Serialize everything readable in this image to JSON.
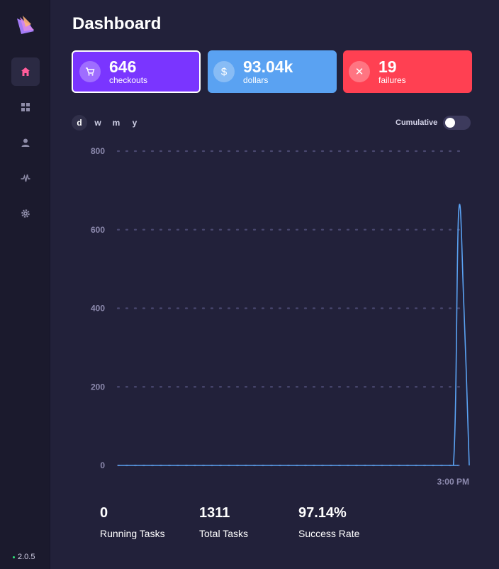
{
  "app": {
    "title": "Dashboard",
    "version": "2.0.5"
  },
  "sidebar": {
    "items": [
      {
        "icon": "home-icon",
        "active": true
      },
      {
        "icon": "grid-icon",
        "active": false
      },
      {
        "icon": "user-icon",
        "active": false
      },
      {
        "icon": "activity-icon",
        "active": false
      },
      {
        "icon": "gear-icon",
        "active": false
      }
    ]
  },
  "cards": [
    {
      "value": "646",
      "label": "checkouts",
      "icon": "cart-icon",
      "color": "#7a35ff"
    },
    {
      "value": "93.04k",
      "label": "dollars",
      "icon": "dollar-icon",
      "color": "#5aa2f2"
    },
    {
      "value": "19",
      "label": "failures",
      "icon": "x-icon",
      "color": "#ff4052"
    }
  ],
  "range": {
    "options": [
      "d",
      "w",
      "m",
      "y"
    ],
    "selected": "d"
  },
  "cumulative": {
    "label": "Cumulative",
    "enabled": false
  },
  "chart_data": {
    "type": "line",
    "title": "",
    "xlabel": "",
    "ylabel": "",
    "ylim": [
      0,
      800
    ],
    "yticks": [
      0,
      200,
      400,
      600,
      800
    ],
    "xtick_labels": [
      "3:00 PM"
    ],
    "grid": true,
    "series": [
      {
        "name": "checkouts",
        "color": "#5aa2f2",
        "x": [
          0,
          0.5,
          0.92,
          0.955,
          0.97,
          0.985,
          1.0
        ],
        "values": [
          0,
          0,
          0,
          0,
          646,
          400,
          0
        ]
      }
    ]
  },
  "stats": [
    {
      "value": "0",
      "label": "Running Tasks"
    },
    {
      "value": "1311",
      "label": "Total Tasks"
    },
    {
      "value": "97.14%",
      "label": "Success Rate"
    }
  ]
}
